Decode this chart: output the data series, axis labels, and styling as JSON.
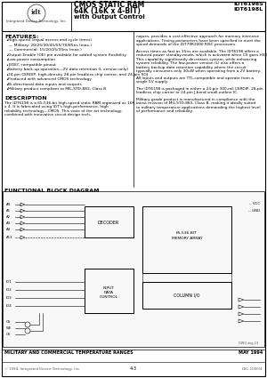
{
  "bg_color": "#ffffff",
  "border_color": "#000000",
  "title_chip": "CMOS STATIC RAM\n64K (16K x 4-BIT)\nwith Output Control",
  "part_numbers": "IDT6198S\nIDT6198L",
  "company": "Integrated Device Technology, Inc.",
  "features_title": "FEATURES:",
  "features": [
    "High-speed (equal access and cycle times)",
    "   — Military: 20/25/30/45/55/70/85ns (max.)",
    "   — Commercial: 15/20/25/35ns (max.)",
    "Output Enable (OE) pin available for added system flexibility",
    "Low-power consumption",
    "JEDEC compatible pinout",
    "Battery back-up operation—2V data retention (L version only)",
    "24-pin CERDIP, high-density 28-pin leadless chip carrier, and 24-pin SOJ",
    "Produced with advanced CMOS technology",
    "Bi-directional data inputs and outputs",
    "Military product compliant to MIL-STD-883, Class B"
  ],
  "desc_title": "DESCRIPTION",
  "desc_text": "The IDT6198 is a 65,536-bit high-speed static RAM organized as 16K x 4. It is fabricated using IDT's high-performance, high reliability technology—CMOS. This state of the art technology, combined with innovative circuit design tech-",
  "right_text": "niques, provides a cost-effective approach for memory intensive applications. Timing parameters have been specified to meet the speed demands of the IDT79R3000 RISC processors.\n\nAccess times as fast as 15ns are available. The IDT6198 offers a reduced power standby-mode, which is activated when CS goes HIGH. This capability significantly decreases system, while enhancing system reliability. The low-power version (L) also offers a battery backup data retention capability where the circuit typically consumes only 30uW when operating from a 2V battery.\n\nAll inputs and outputs are TTL-compatible and operate from a single 5V supply.\n\nThe IDT6198 is packaged in either a 24-pin 300-mil CERDIP, 28-pin leadless chip carrier or 24-pin J-bend small-outline IC.\n\nMilitary grade product is manufactured in compliance with the latest revision of MIL-STD-883, Class B, making it ideally suited to military temperature applications demanding the highest level of performance and reliability.",
  "fbd_title": "FUNCTIONAL BLOCK DIAGRAM",
  "footer_left": "MILITARY AND COMMERCIAL TEMPERATURE RANGES",
  "footer_right": "MAY 1994",
  "footer_bottom_left": "© 1994, Integrated Device Technology, Inc.",
  "footer_bottom_center": "4-3",
  "footer_bottom_right": "DSC-1000/4"
}
